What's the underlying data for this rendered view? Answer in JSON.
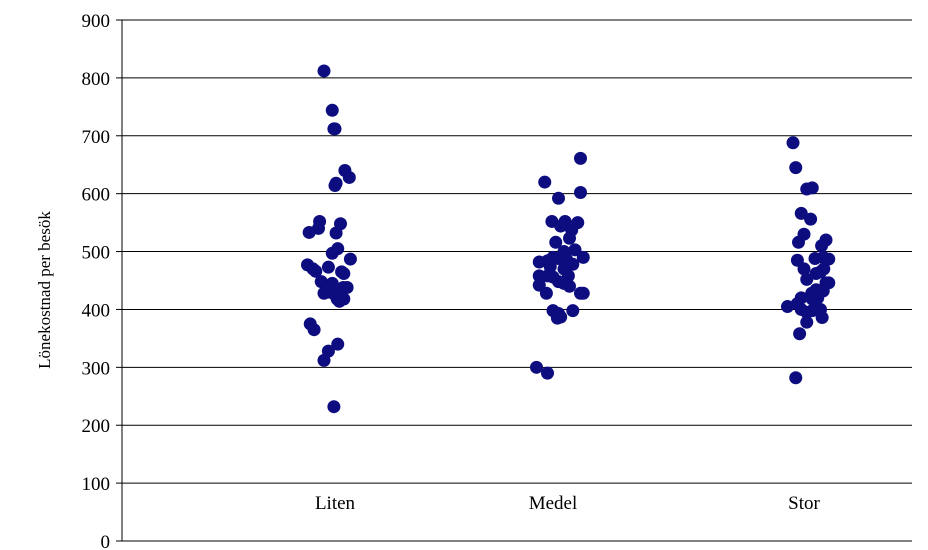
{
  "chart_data": {
    "type": "scatter",
    "title": "",
    "xlabel": "",
    "ylabel": "Lönekostnad per besök",
    "ylim": [
      0,
      900
    ],
    "yticks": [
      "0",
      "100",
      "200",
      "300",
      "400",
      "500",
      "600",
      "700",
      "800",
      "900"
    ],
    "grid": true,
    "marker_color": "#0d0d80",
    "categories": [
      "Liten",
      "Medel",
      "Stor"
    ],
    "series": [
      {
        "category": "Liten",
        "points": [
          {
            "x": -0.2,
            "y": 812
          },
          {
            "x": -0.05,
            "y": 744
          },
          {
            "x": -0.02,
            "y": 712
          },
          {
            "x": 0.0,
            "y": 712
          },
          {
            "x": 0.18,
            "y": 640
          },
          {
            "x": 0.26,
            "y": 628
          },
          {
            "x": 0.02,
            "y": 618
          },
          {
            "x": 0.0,
            "y": 614
          },
          {
            "x": -0.28,
            "y": 552
          },
          {
            "x": 0.1,
            "y": 548
          },
          {
            "x": -0.3,
            "y": 540
          },
          {
            "x": -0.47,
            "y": 533
          },
          {
            "x": 0.02,
            "y": 532
          },
          {
            "x": 0.05,
            "y": 505
          },
          {
            "x": -0.05,
            "y": 497
          },
          {
            "x": 0.28,
            "y": 487
          },
          {
            "x": -0.5,
            "y": 477
          },
          {
            "x": -0.4,
            "y": 470
          },
          {
            "x": -0.12,
            "y": 473
          },
          {
            "x": -0.35,
            "y": 466
          },
          {
            "x": 0.12,
            "y": 465
          },
          {
            "x": 0.16,
            "y": 462
          },
          {
            "x": -0.25,
            "y": 448
          },
          {
            "x": -0.05,
            "y": 445
          },
          {
            "x": 0.15,
            "y": 438
          },
          {
            "x": 0.22,
            "y": 438
          },
          {
            "x": -0.12,
            "y": 430
          },
          {
            "x": -0.2,
            "y": 428
          },
          {
            "x": -0.02,
            "y": 427
          },
          {
            "x": 0.04,
            "y": 418
          },
          {
            "x": 0.16,
            "y": 418
          },
          {
            "x": 0.08,
            "y": 414
          },
          {
            "x": -0.45,
            "y": 375
          },
          {
            "x": -0.38,
            "y": 365
          },
          {
            "x": 0.05,
            "y": 340
          },
          {
            "x": -0.12,
            "y": 328
          },
          {
            "x": -0.2,
            "y": 312
          },
          {
            "x": -0.02,
            "y": 232
          }
        ]
      },
      {
        "category": "Medel",
        "points": [
          {
            "x": 0.5,
            "y": 661
          },
          {
            "x": -0.15,
            "y": 620
          },
          {
            "x": 0.5,
            "y": 602
          },
          {
            "x": 0.1,
            "y": 592
          },
          {
            "x": -0.02,
            "y": 552
          },
          {
            "x": 0.22,
            "y": 552
          },
          {
            "x": 0.45,
            "y": 550
          },
          {
            "x": 0.14,
            "y": 544
          },
          {
            "x": 0.34,
            "y": 537
          },
          {
            "x": 0.3,
            "y": 523
          },
          {
            "x": 0.05,
            "y": 516
          },
          {
            "x": 0.4,
            "y": 503
          },
          {
            "x": 0.2,
            "y": 500
          },
          {
            "x": 0.55,
            "y": 490
          },
          {
            "x": -0.25,
            "y": 482
          },
          {
            "x": -0.1,
            "y": 484
          },
          {
            "x": 0.0,
            "y": 490
          },
          {
            "x": 0.1,
            "y": 488
          },
          {
            "x": 0.25,
            "y": 486
          },
          {
            "x": -0.05,
            "y": 474
          },
          {
            "x": 0.2,
            "y": 470
          },
          {
            "x": 0.36,
            "y": 478
          },
          {
            "x": -0.25,
            "y": 458
          },
          {
            "x": -0.1,
            "y": 458
          },
          {
            "x": 0.0,
            "y": 456
          },
          {
            "x": 0.28,
            "y": 458
          },
          {
            "x": 0.1,
            "y": 448
          },
          {
            "x": -0.25,
            "y": 442
          },
          {
            "x": 0.2,
            "y": 445
          },
          {
            "x": 0.3,
            "y": 440
          },
          {
            "x": -0.12,
            "y": 428
          },
          {
            "x": 0.5,
            "y": 428
          },
          {
            "x": 0.55,
            "y": 428
          },
          {
            "x": 0.0,
            "y": 398
          },
          {
            "x": 0.1,
            "y": 393
          },
          {
            "x": 0.36,
            "y": 398
          },
          {
            "x": 0.08,
            "y": 385
          },
          {
            "x": 0.14,
            "y": 387
          },
          {
            "x": -0.3,
            "y": 300
          },
          {
            "x": -0.1,
            "y": 290
          }
        ]
      },
      {
        "category": "Stor",
        "points": [
          {
            "x": -0.2,
            "y": 688
          },
          {
            "x": -0.15,
            "y": 645
          },
          {
            "x": 0.05,
            "y": 608
          },
          {
            "x": 0.15,
            "y": 610
          },
          {
            "x": -0.05,
            "y": 566
          },
          {
            "x": 0.12,
            "y": 556
          },
          {
            "x": 0.0,
            "y": 530
          },
          {
            "x": -0.1,
            "y": 516
          },
          {
            "x": 0.4,
            "y": 520
          },
          {
            "x": 0.32,
            "y": 510
          },
          {
            "x": -0.12,
            "y": 485
          },
          {
            "x": 0.2,
            "y": 488
          },
          {
            "x": 0.35,
            "y": 490
          },
          {
            "x": 0.45,
            "y": 487
          },
          {
            "x": 0.0,
            "y": 470
          },
          {
            "x": 0.22,
            "y": 462
          },
          {
            "x": 0.3,
            "y": 465
          },
          {
            "x": 0.36,
            "y": 470
          },
          {
            "x": 0.05,
            "y": 452
          },
          {
            "x": 0.4,
            "y": 446
          },
          {
            "x": 0.45,
            "y": 446
          },
          {
            "x": 0.22,
            "y": 434
          },
          {
            "x": 0.28,
            "y": 430
          },
          {
            "x": 0.14,
            "y": 428
          },
          {
            "x": 0.35,
            "y": 432
          },
          {
            "x": -0.05,
            "y": 420
          },
          {
            "x": 0.15,
            "y": 418
          },
          {
            "x": 0.25,
            "y": 420
          },
          {
            "x": -0.3,
            "y": 405
          },
          {
            "x": -0.12,
            "y": 410
          },
          {
            "x": -0.05,
            "y": 400
          },
          {
            "x": 0.05,
            "y": 395
          },
          {
            "x": 0.15,
            "y": 398
          },
          {
            "x": 0.3,
            "y": 400
          },
          {
            "x": 0.22,
            "y": 405
          },
          {
            "x": 0.05,
            "y": 378
          },
          {
            "x": 0.33,
            "y": 386
          },
          {
            "x": -0.08,
            "y": 358
          },
          {
            "x": -0.15,
            "y": 282
          }
        ]
      }
    ]
  }
}
